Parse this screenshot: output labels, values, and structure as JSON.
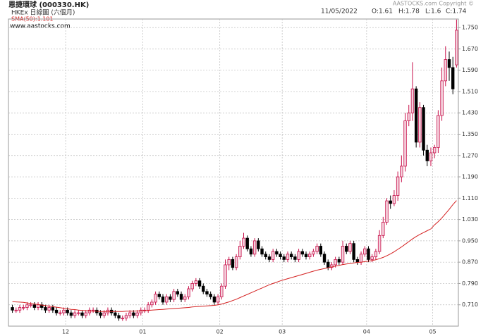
{
  "chart_data": {
    "type": "candlestick",
    "title": "恩捷環球 (000330.HK)",
    "subtitle": "HKEx 日線圖 (六個月)",
    "website": "www.aastocks.com",
    "copyright": "AASTOCKS.com Copyright ©",
    "quote": {
      "date": "11/05/2022",
      "open": "O:1.61",
      "high": "H:1.78",
      "low": "L:1.6",
      "close": "C:1.74"
    },
    "up_color": "#c8104a",
    "up_fill": "#f4d0dc",
    "down_color": "#000000",
    "grid": true,
    "ylim": [
      0.63,
      1.782
    ],
    "yticks": [
      {
        "value": 0.71,
        "label": "0.710"
      },
      {
        "value": 0.79,
        "label": "0.790"
      },
      {
        "value": 0.87,
        "label": "0.870"
      },
      {
        "value": 0.95,
        "label": "0.950"
      },
      {
        "value": 1.03,
        "label": "1.030"
      },
      {
        "value": 1.11,
        "label": "1.110"
      },
      {
        "value": 1.19,
        "label": "1.190"
      },
      {
        "value": 1.27,
        "label": "1.270"
      },
      {
        "value": 1.35,
        "label": "1.350"
      },
      {
        "value": 1.43,
        "label": "1.430"
      },
      {
        "value": 1.51,
        "label": "1.510"
      },
      {
        "value": 1.59,
        "label": "1.590"
      },
      {
        "value": 1.67,
        "label": "1.670"
      },
      {
        "value": 1.75,
        "label": "1.750"
      }
    ],
    "categories": [
      null,
      null,
      null,
      null,
      null,
      null,
      null,
      null,
      null,
      null,
      null,
      null,
      null,
      null,
      null,
      "12",
      null,
      null,
      null,
      null,
      null,
      null,
      null,
      null,
      null,
      null,
      null,
      null,
      null,
      null,
      null,
      null,
      null,
      null,
      null,
      null,
      "01",
      null,
      null,
      null,
      null,
      null,
      null,
      null,
      null,
      null,
      null,
      null,
      null,
      null,
      null,
      null,
      null,
      null,
      null,
      null,
      null,
      "02",
      null,
      null,
      null,
      null,
      null,
      null,
      null,
      null,
      null,
      null,
      null,
      null,
      null,
      null,
      null,
      null,
      "03",
      null,
      null,
      null,
      null,
      null,
      null,
      null,
      null,
      null,
      null,
      null,
      null,
      null,
      null,
      null,
      null,
      null,
      null,
      null,
      null,
      null,
      null,
      "04",
      null,
      null,
      null,
      null,
      null,
      null,
      null,
      null,
      null,
      null,
      null,
      null,
      null,
      null,
      null,
      null,
      null,
      "05",
      null,
      null,
      null,
      null,
      null,
      null
    ],
    "open": [
      0.7,
      0.69,
      0.69,
      0.7,
      0.7,
      0.71,
      0.71,
      0.7,
      0.71,
      0.7,
      0.69,
      0.7,
      0.69,
      0.68,
      0.68,
      0.69,
      0.68,
      0.67,
      0.68,
      0.68,
      0.67,
      0.68,
      0.69,
      0.69,
      0.68,
      0.67,
      0.68,
      0.69,
      0.68,
      0.67,
      0.66,
      0.66,
      0.67,
      0.68,
      0.67,
      0.68,
      0.69,
      0.69,
      0.71,
      0.72,
      0.75,
      0.74,
      0.72,
      0.74,
      0.73,
      0.76,
      0.75,
      0.73,
      0.74,
      0.77,
      0.79,
      0.8,
      0.78,
      0.76,
      0.75,
      0.74,
      0.72,
      0.74,
      0.78,
      0.86,
      0.88,
      0.85,
      0.89,
      0.93,
      0.96,
      0.92,
      0.9,
      0.95,
      0.92,
      0.9,
      0.89,
      0.88,
      0.91,
      0.9,
      0.89,
      0.88,
      0.9,
      0.89,
      0.88,
      0.91,
      0.9,
      0.89,
      0.9,
      0.91,
      0.93,
      0.9,
      0.87,
      0.85,
      0.86,
      0.88,
      0.87,
      0.93,
      0.91,
      0.94,
      0.88,
      0.87,
      0.9,
      0.92,
      0.88,
      0.89,
      0.91,
      0.97,
      1.02,
      1.1,
      1.09,
      1.12,
      1.19,
      1.23,
      1.4,
      1.43,
      1.52,
      1.32,
      1.45,
      1.29,
      1.25,
      1.28,
      1.3,
      1.42,
      1.55,
      1.63,
      1.6,
      1.61
    ],
    "high": [
      0.71,
      0.7,
      0.71,
      0.71,
      0.72,
      0.72,
      0.72,
      0.72,
      0.72,
      0.71,
      0.71,
      0.71,
      0.7,
      0.69,
      0.7,
      0.7,
      0.69,
      0.69,
      0.69,
      0.69,
      0.69,
      0.7,
      0.7,
      0.7,
      0.69,
      0.69,
      0.7,
      0.7,
      0.69,
      0.68,
      0.67,
      0.68,
      0.69,
      0.69,
      0.69,
      0.7,
      0.7,
      0.72,
      0.73,
      0.76,
      0.76,
      0.75,
      0.75,
      0.75,
      0.77,
      0.77,
      0.76,
      0.75,
      0.78,
      0.8,
      0.81,
      0.81,
      0.79,
      0.77,
      0.76,
      0.75,
      0.75,
      0.79,
      0.88,
      0.89,
      0.89,
      0.9,
      0.95,
      0.98,
      0.97,
      0.93,
      0.96,
      0.96,
      0.93,
      0.91,
      0.9,
      0.92,
      0.92,
      0.91,
      0.9,
      0.91,
      0.91,
      0.9,
      0.92,
      0.92,
      0.91,
      0.91,
      0.92,
      0.94,
      0.94,
      0.91,
      0.88,
      0.87,
      0.89,
      0.89,
      0.95,
      0.94,
      0.95,
      0.95,
      0.89,
      0.91,
      0.93,
      0.93,
      0.9,
      0.92,
      0.99,
      1.04,
      1.11,
      1.12,
      1.14,
      1.21,
      1.27,
      1.43,
      1.46,
      1.62,
      1.53,
      1.47,
      1.46,
      1.31,
      1.3,
      1.31,
      1.44,
      1.6,
      1.68,
      1.66,
      1.64,
      1.78
    ],
    "low": [
      0.68,
      0.68,
      0.68,
      0.69,
      0.69,
      0.7,
      0.69,
      0.69,
      0.69,
      0.68,
      0.68,
      0.68,
      0.67,
      0.67,
      0.67,
      0.67,
      0.66,
      0.66,
      0.67,
      0.66,
      0.66,
      0.67,
      0.68,
      0.67,
      0.66,
      0.66,
      0.67,
      0.67,
      0.66,
      0.65,
      0.65,
      0.65,
      0.66,
      0.66,
      0.66,
      0.67,
      0.68,
      0.68,
      0.7,
      0.71,
      0.73,
      0.71,
      0.71,
      0.72,
      0.72,
      0.74,
      0.72,
      0.72,
      0.73,
      0.76,
      0.78,
      0.77,
      0.75,
      0.74,
      0.73,
      0.71,
      0.71,
      0.73,
      0.77,
      0.84,
      0.84,
      0.84,
      0.88,
      0.92,
      0.91,
      0.89,
      0.89,
      0.91,
      0.89,
      0.88,
      0.87,
      0.87,
      0.89,
      0.88,
      0.87,
      0.87,
      0.88,
      0.87,
      0.87,
      0.89,
      0.88,
      0.88,
      0.89,
      0.9,
      0.89,
      0.86,
      0.84,
      0.84,
      0.85,
      0.86,
      0.86,
      0.9,
      0.9,
      0.87,
      0.86,
      0.86,
      0.89,
      0.87,
      0.87,
      0.88,
      0.9,
      0.96,
      1.01,
      1.07,
      1.08,
      1.1,
      1.17,
      1.21,
      1.38,
      1.4,
      1.3,
      1.3,
      1.27,
      1.23,
      1.23,
      1.26,
      1.28,
      1.4,
      1.53,
      1.55,
      1.5,
      1.6
    ],
    "close": [
      0.69,
      0.69,
      0.7,
      0.7,
      0.71,
      0.71,
      0.7,
      0.71,
      0.7,
      0.69,
      0.7,
      0.69,
      0.68,
      0.68,
      0.69,
      0.68,
      0.67,
      0.68,
      0.68,
      0.67,
      0.68,
      0.69,
      0.69,
      0.68,
      0.67,
      0.68,
      0.69,
      0.68,
      0.67,
      0.66,
      0.66,
      0.67,
      0.68,
      0.67,
      0.68,
      0.69,
      0.69,
      0.71,
      0.72,
      0.75,
      0.74,
      0.72,
      0.74,
      0.73,
      0.76,
      0.75,
      0.73,
      0.74,
      0.77,
      0.79,
      0.8,
      0.78,
      0.76,
      0.75,
      0.74,
      0.72,
      0.74,
      0.78,
      0.86,
      0.88,
      0.85,
      0.89,
      0.93,
      0.96,
      0.92,
      0.9,
      0.95,
      0.92,
      0.9,
      0.89,
      0.88,
      0.91,
      0.9,
      0.89,
      0.88,
      0.9,
      0.89,
      0.88,
      0.91,
      0.9,
      0.89,
      0.9,
      0.91,
      0.93,
      0.9,
      0.87,
      0.85,
      0.86,
      0.88,
      0.87,
      0.93,
      0.91,
      0.94,
      0.88,
      0.87,
      0.9,
      0.92,
      0.88,
      0.89,
      0.91,
      0.97,
      1.02,
      1.1,
      1.09,
      1.12,
      1.19,
      1.23,
      1.4,
      1.43,
      1.52,
      1.32,
      1.45,
      1.29,
      1.25,
      1.28,
      1.3,
      1.42,
      1.55,
      1.63,
      1.6,
      1.52,
      1.74
    ],
    "sma": {
      "name": "SMA(50):1.101",
      "color": "#d42020",
      "values": [
        0.722,
        0.721,
        0.72,
        0.719,
        0.717,
        0.715,
        0.713,
        0.711,
        0.709,
        0.707,
        0.705,
        0.703,
        0.701,
        0.699,
        0.697,
        0.695,
        0.693,
        0.692,
        0.69,
        0.689,
        0.688,
        0.687,
        0.686,
        0.686,
        0.685,
        0.685,
        0.685,
        0.685,
        0.685,
        0.685,
        0.685,
        0.686,
        0.686,
        0.686,
        0.687,
        0.687,
        0.688,
        0.689,
        0.69,
        0.691,
        0.692,
        0.693,
        0.694,
        0.695,
        0.696,
        0.697,
        0.698,
        0.699,
        0.7,
        0.702,
        0.703,
        0.704,
        0.705,
        0.706,
        0.707,
        0.708,
        0.71,
        0.713,
        0.717,
        0.721,
        0.726,
        0.731,
        0.737,
        0.743,
        0.749,
        0.755,
        0.761,
        0.767,
        0.773,
        0.779,
        0.785,
        0.79,
        0.795,
        0.8,
        0.804,
        0.808,
        0.812,
        0.816,
        0.82,
        0.824,
        0.828,
        0.832,
        0.836,
        0.84,
        0.843,
        0.846,
        0.849,
        0.852,
        0.855,
        0.858,
        0.861,
        0.863,
        0.865,
        0.867,
        0.869,
        0.87,
        0.872,
        0.874,
        0.876,
        0.879,
        0.883,
        0.888,
        0.894,
        0.901,
        0.909,
        0.918,
        0.927,
        0.937,
        0.947,
        0.957,
        0.966,
        0.974,
        0.981,
        0.988,
        0.995,
        1.01,
        1.022,
        1.036,
        1.052,
        1.068,
        1.086,
        1.101
      ]
    }
  }
}
